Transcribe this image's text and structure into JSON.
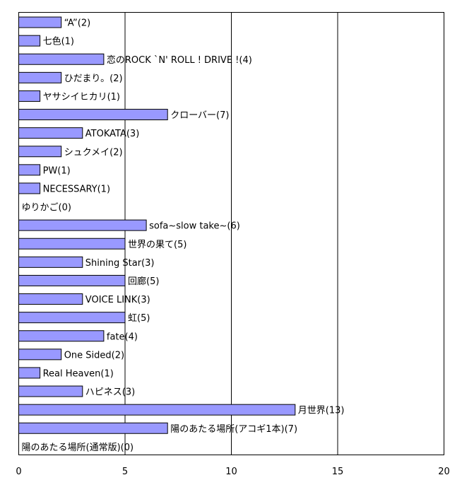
{
  "chart_data": {
    "type": "bar",
    "orientation": "horizontal",
    "categories": [
      "“A”",
      "七色",
      "恋のROCK `N' ROLL ! DRIVE !",
      "ひだまり。",
      "ヤサシイヒカリ",
      "クローバー",
      "ATOKATA",
      "シュクメイ",
      "PW",
      "NECESSARY",
      "ゆりかご",
      "sofa~slow take~",
      "世界の果て",
      "Shining Star",
      "回廊",
      "VOICE LINK",
      "虹",
      "fate",
      "One Sided",
      "Real Heaven",
      "ハピネス",
      "月世界",
      "陽のあたる場所(アコギ1本)",
      "陽のあたる場所(通常版)"
    ],
    "values": [
      2,
      1,
      4,
      2,
      1,
      7,
      3,
      2,
      1,
      1,
      0,
      6,
      5,
      3,
      5,
      3,
      5,
      4,
      2,
      1,
      3,
      13,
      7,
      0
    ],
    "labels": [
      "“A”(2)",
      "七色(1)",
      "恋のROCK `N' ROLL ! DRIVE !(4)",
      "ひだまり。(2)",
      "ヤサシイヒカリ(1)",
      "クローバー(7)",
      "ATOKATA(3)",
      "シュクメイ(2)",
      "PW(1)",
      "NECESSARY(1)",
      "ゆりかご(0)",
      "sofa~slow take~(6)",
      "世界の果て(5)",
      "Shining Star(3)",
      "回廊(5)",
      "VOICE LINK(3)",
      "虹(5)",
      "fate(4)",
      "One Sided(2)",
      "Real Heaven(1)",
      "ハピネス(3)",
      "月世界(13)",
      "陽のあたる場所(アコギ1本)(7)",
      "陽のあたる場所(通常版)(0)"
    ],
    "xticks": [
      "0",
      "5",
      "10",
      "15",
      "20"
    ],
    "xlim": [
      0,
      20
    ],
    "title": "",
    "xlabel": "",
    "ylabel": "",
    "grid": "vertical major gridlines",
    "legend": "none",
    "bar_color": "#9999ff",
    "bar_edge_color": "#000000"
  }
}
